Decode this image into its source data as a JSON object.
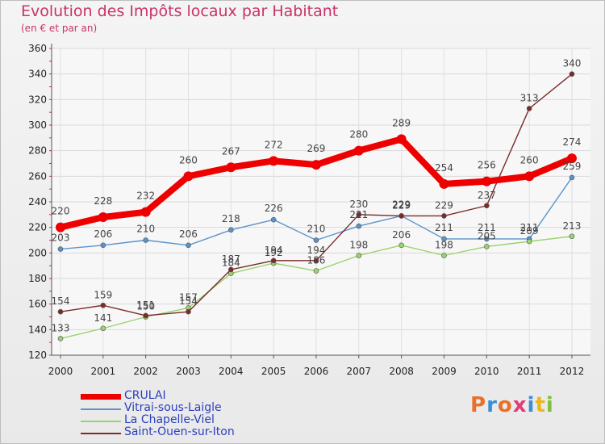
{
  "title": "Evolution des Impôts locaux par Habitant",
  "subtitle": "(en € et par an)",
  "logo": {
    "text": "Proxiti",
    "colors": [
      "#e8702a",
      "#3a8fd6",
      "#e8702a",
      "#e23b7a",
      "#3a8fd6",
      "#e8b820",
      "#7cc142"
    ]
  },
  "chart_data": {
    "type": "line",
    "title": "Evolution des Impôts locaux par Habitant",
    "subtitle": "(en € et par an)",
    "xlabel": "",
    "ylabel": "",
    "categories": [
      "2000",
      "2001",
      "2002",
      "2003",
      "2004",
      "2005",
      "2006",
      "2007",
      "2008",
      "2009",
      "2010",
      "2011",
      "2012"
    ],
    "ylim": [
      120,
      360
    ],
    "yticks": [
      120,
      140,
      160,
      180,
      200,
      220,
      240,
      260,
      280,
      300,
      320,
      340,
      360
    ],
    "grid": true,
    "legend": "bottom-left",
    "series": [
      {
        "name": "CRULAI",
        "color": "#ee0000",
        "values": [
          220,
          228,
          232,
          260,
          267,
          272,
          269,
          280,
          289,
          254,
          256,
          260,
          274
        ]
      },
      {
        "name": "Vitrai-sous-Laigle",
        "color": "#5b93c9",
        "values": [
          203,
          206,
          210,
          206,
          218,
          226,
          210,
          221,
          229,
          211,
          211,
          211,
          259
        ]
      },
      {
        "name": "La Chapelle-Viel",
        "color": "#9ad26e",
        "values": [
          133,
          141,
          150,
          157,
          184,
          192,
          186,
          198,
          206,
          198,
          205,
          209,
          213
        ]
      },
      {
        "name": "Saint-Ouen-sur-Iton",
        "color": "#7d2a2a",
        "values": [
          154,
          159,
          151,
          154,
          187,
          194,
          194,
          230,
          229,
          229,
          237,
          313,
          340
        ]
      }
    ]
  }
}
